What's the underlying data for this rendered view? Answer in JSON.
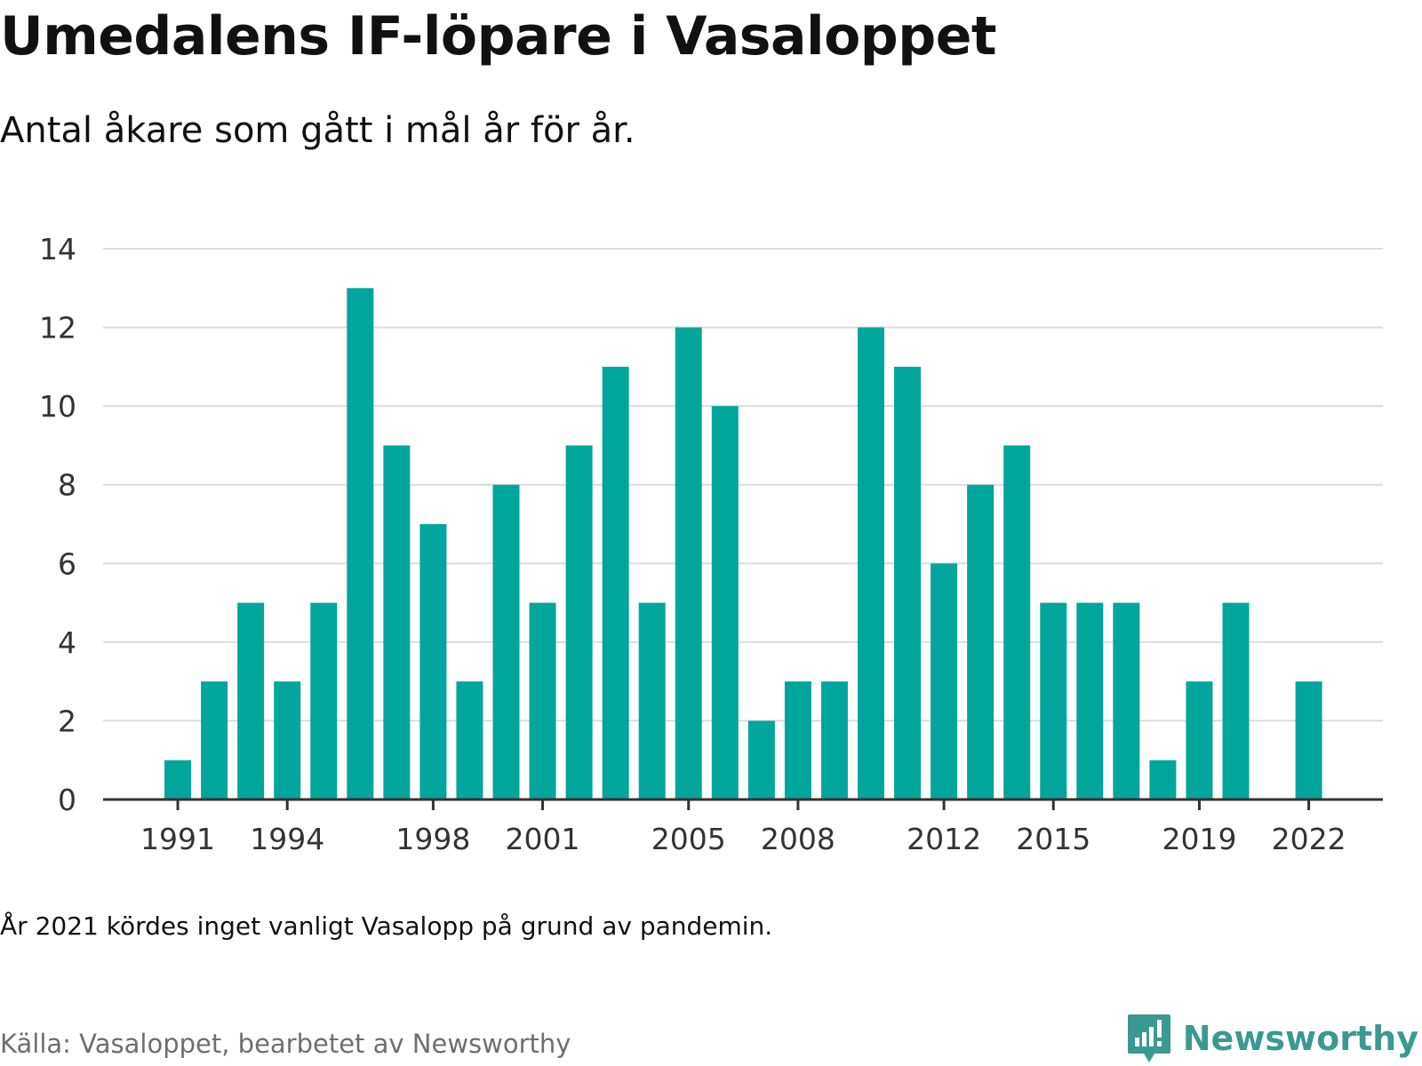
{
  "title": "Umedalens IF-löpare i Vasaloppet",
  "subtitle": "Antal åkare som gått i mål år för år.",
  "note": "År 2021 kördes inget vanligt Vasalopp på grund av pandemin.",
  "source": "Källa: Vasaloppet, bearbetet av Newsworthy",
  "brand": {
    "name": "Newsworthy",
    "icon": "newsworthy-logo-icon",
    "color": "#3a9a91"
  },
  "chart_data": {
    "type": "bar",
    "color": "#00a69c",
    "categories": [
      1990,
      1991,
      1992,
      1993,
      1994,
      1995,
      1996,
      1997,
      1998,
      1999,
      2000,
      2001,
      2002,
      2003,
      2004,
      2005,
      2006,
      2007,
      2008,
      2009,
      2010,
      2011,
      2012,
      2013,
      2014,
      2015,
      2016,
      2017,
      2018,
      2019,
      2020,
      2021,
      2022
    ],
    "values": [
      0,
      1,
      3,
      5,
      3,
      5,
      13,
      9,
      7,
      3,
      8,
      5,
      9,
      11,
      5,
      12,
      10,
      2,
      3,
      3,
      12,
      11,
      6,
      8,
      9,
      5,
      5,
      5,
      1,
      3,
      5,
      null,
      3
    ],
    "x_tick_labels": [
      "1991",
      "1994",
      "1998",
      "2001",
      "2005",
      "2008",
      "2012",
      "2015",
      "2019",
      "2022"
    ],
    "y_ticks": [
      0,
      2,
      4,
      6,
      8,
      10,
      12,
      14
    ],
    "ylim": [
      0,
      14
    ],
    "grid": true,
    "legend": "none"
  }
}
